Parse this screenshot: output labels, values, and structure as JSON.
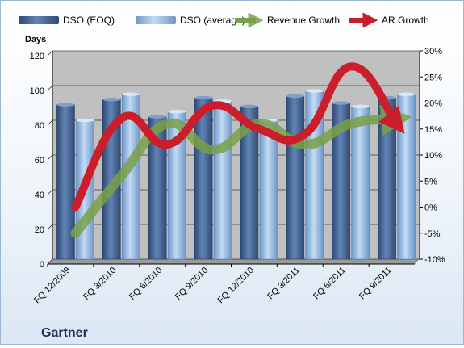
{
  "company": "Gartner",
  "chart_data": {
    "type": "bar",
    "categories": [
      "FQ 12/2009",
      "FQ 3/2010",
      "FQ 6/2010",
      "FQ 9/2010",
      "FQ 12/2010",
      "FQ 3/2011",
      "FQ 6/2011",
      "FQ 9/2011"
    ],
    "series": [
      {
        "name": "DSO (EOQ)",
        "type": "bar",
        "axis": "left",
        "values": [
          89,
          92,
          82,
          93,
          88,
          94,
          90,
          93
        ]
      },
      {
        "name": "DSO (average)",
        "type": "bar",
        "axis": "left",
        "values": [
          80,
          95,
          85,
          91,
          80,
          97,
          88,
          95
        ]
      },
      {
        "name": "Revenue Growth",
        "type": "line",
        "axis": "right",
        "values": [
          -5,
          6,
          16,
          11,
          16,
          12,
          16,
          17
        ]
      },
      {
        "name": "AR Growth",
        "type": "line",
        "axis": "right",
        "values": [
          0,
          17,
          12,
          19.5,
          15,
          14,
          27,
          16
        ]
      }
    ],
    "ylabel": "Days",
    "ylim": [
      0,
      120
    ],
    "yticks": [
      "0",
      "20",
      "40",
      "60",
      "80",
      "100",
      "120"
    ],
    "y2lim": [
      -10,
      30
    ],
    "y2ticks": [
      "-10%",
      "-5%",
      "0%",
      "5%",
      "10%",
      "15%",
      "20%",
      "25%",
      "30%"
    ],
    "legend": "top",
    "grid": true,
    "colors": {
      "dso_eoq": "#4a6a98",
      "dso_avg": "#8eb4df",
      "revenue": "#79a04a",
      "ar": "#cc1e2a",
      "plot_bg": "#c0c0c0",
      "grid": "#000000"
    }
  }
}
